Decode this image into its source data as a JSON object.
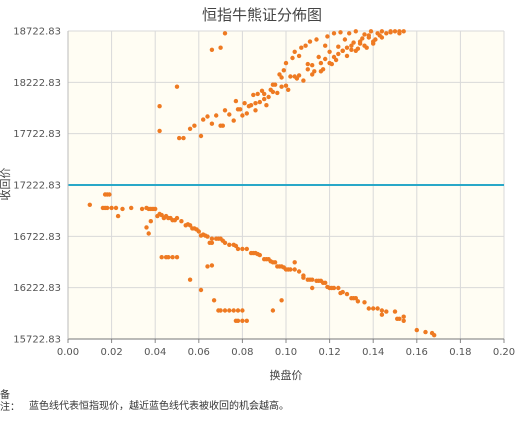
{
  "chart_data": {
    "type": "scatter",
    "title": "恒指牛熊证分佈图",
    "xlabel": "换盘价",
    "ylabel": "收回价",
    "xlim": [
      0.0,
      0.2
    ],
    "ylim": [
      15722.83,
      18722.83
    ],
    "x_ticks": [
      "0.00",
      "0.02",
      "0.04",
      "0.06",
      "0.08",
      "0.10",
      "0.12",
      "0.14",
      "0.16",
      "0.18",
      "0.20"
    ],
    "y_ticks": [
      "15722.83",
      "16222.83",
      "16722.83",
      "17222.83",
      "17722.83",
      "18222.83",
      "18722.83"
    ],
    "grid": true,
    "reference_line": {
      "y": 17222.83,
      "color": "#29a8c8"
    },
    "point_color": "#ee7a22",
    "series": [
      {
        "points": [
          [
            0.05,
            18180
          ],
          [
            0.066,
            18540
          ],
          [
            0.07,
            18560
          ],
          [
            0.072,
            18700
          ],
          [
            0.042,
            17750
          ],
          [
            0.042,
            17990
          ],
          [
            0.051,
            17680
          ],
          [
            0.053,
            17680
          ],
          [
            0.056,
            17770
          ],
          [
            0.058,
            17800
          ],
          [
            0.061,
            17700
          ],
          [
            0.062,
            17860
          ],
          [
            0.064,
            17890
          ],
          [
            0.066,
            17820
          ],
          [
            0.068,
            17900
          ],
          [
            0.07,
            17800
          ],
          [
            0.071,
            17800
          ],
          [
            0.072,
            17950
          ],
          [
            0.074,
            17910
          ],
          [
            0.076,
            17850
          ],
          [
            0.078,
            17960
          ],
          [
            0.08,
            17900
          ],
          [
            0.081,
            18020
          ],
          [
            0.082,
            17920
          ],
          [
            0.084,
            18000
          ],
          [
            0.085,
            18100
          ],
          [
            0.086,
            17950
          ],
          [
            0.088,
            18030
          ],
          [
            0.089,
            18140
          ],
          [
            0.09,
            18060
          ],
          [
            0.091,
            18000
          ],
          [
            0.092,
            18080
          ],
          [
            0.093,
            18150
          ],
          [
            0.094,
            18200
          ],
          [
            0.096,
            18120
          ],
          [
            0.097,
            18300
          ],
          [
            0.098,
            18270
          ],
          [
            0.099,
            18340
          ],
          [
            0.1,
            18410
          ],
          [
            0.101,
            18150
          ],
          [
            0.102,
            18280
          ],
          [
            0.103,
            18460
          ],
          [
            0.104,
            18520
          ],
          [
            0.105,
            18260
          ],
          [
            0.106,
            18480
          ],
          [
            0.107,
            18560
          ],
          [
            0.108,
            18240
          ],
          [
            0.109,
            18580
          ],
          [
            0.11,
            18400
          ],
          [
            0.111,
            18620
          ],
          [
            0.112,
            18300
          ],
          [
            0.113,
            18330
          ],
          [
            0.114,
            18640
          ],
          [
            0.115,
            18470
          ],
          [
            0.116,
            18410
          ],
          [
            0.117,
            18350
          ],
          [
            0.118,
            18580
          ],
          [
            0.119,
            18670
          ],
          [
            0.12,
            18520
          ],
          [
            0.121,
            18400
          ],
          [
            0.122,
            18700
          ],
          [
            0.123,
            18440
          ],
          [
            0.124,
            18570
          ],
          [
            0.125,
            18710
          ],
          [
            0.126,
            18530
          ],
          [
            0.127,
            18640
          ],
          [
            0.128,
            18560
          ],
          [
            0.129,
            18700
          ],
          [
            0.13,
            18540
          ],
          [
            0.131,
            18610
          ],
          [
            0.132,
            18720
          ],
          [
            0.133,
            18550
          ],
          [
            0.134,
            18600
          ],
          [
            0.135,
            18650
          ],
          [
            0.136,
            18690
          ],
          [
            0.137,
            18560
          ],
          [
            0.138,
            18680
          ],
          [
            0.139,
            18720
          ],
          [
            0.14,
            18600
          ],
          [
            0.141,
            18640
          ],
          [
            0.142,
            18700
          ],
          [
            0.143,
            18680
          ],
          [
            0.144,
            18720
          ],
          [
            0.146,
            18700
          ],
          [
            0.148,
            18710
          ],
          [
            0.15,
            18720
          ],
          [
            0.152,
            18700
          ],
          [
            0.154,
            18720
          ],
          [
            0.152,
            18720
          ],
          [
            0.087,
            18110
          ],
          [
            0.083,
            17990
          ],
          [
            0.079,
            17960
          ],
          [
            0.077,
            18040
          ],
          [
            0.086,
            18020
          ],
          [
            0.095,
            18200
          ],
          [
            0.098,
            18180
          ],
          [
            0.104,
            18280
          ],
          [
            0.11,
            18350
          ],
          [
            0.116,
            18330
          ],
          [
            0.12,
            18410
          ],
          [
            0.124,
            18500
          ],
          [
            0.128,
            18480
          ],
          [
            0.132,
            18530
          ],
          [
            0.136,
            18580
          ],
          [
            0.14,
            18620
          ],
          [
            0.144,
            18660
          ],
          [
            0.148,
            18720
          ],
          [
            0.09,
            18110
          ],
          [
            0.094,
            18130
          ],
          [
            0.1,
            18190
          ],
          [
            0.106,
            18290
          ],
          [
            0.112,
            18390
          ],
          [
            0.118,
            18450
          ],
          [
            0.122,
            18470
          ],
          [
            0.126,
            18530
          ],
          [
            0.13,
            18580
          ],
          [
            0.134,
            18620
          ],
          [
            0.138,
            18660
          ],
          [
            0.01,
            17030
          ],
          [
            0.016,
            17000
          ],
          [
            0.017,
            17130
          ],
          [
            0.018,
            17130
          ],
          [
            0.019,
            17130
          ],
          [
            0.017,
            17000
          ],
          [
            0.018,
            17000
          ],
          [
            0.02,
            17000
          ],
          [
            0.022,
            17000
          ],
          [
            0.023,
            16920
          ],
          [
            0.025,
            16990
          ],
          [
            0.029,
            17000
          ],
          [
            0.034,
            16990
          ],
          [
            0.036,
            17000
          ],
          [
            0.037,
            16990
          ],
          [
            0.038,
            16990
          ],
          [
            0.039,
            16990
          ],
          [
            0.04,
            16990
          ],
          [
            0.038,
            16870
          ],
          [
            0.041,
            16920
          ],
          [
            0.042,
            16940
          ],
          [
            0.043,
            16930
          ],
          [
            0.044,
            16900
          ],
          [
            0.045,
            16920
          ],
          [
            0.046,
            16900
          ],
          [
            0.047,
            16900
          ],
          [
            0.048,
            16880
          ],
          [
            0.049,
            16880
          ],
          [
            0.05,
            16900
          ],
          [
            0.052,
            16870
          ],
          [
            0.054,
            16830
          ],
          [
            0.055,
            16840
          ],
          [
            0.056,
            16830
          ],
          [
            0.057,
            16800
          ],
          [
            0.058,
            16800
          ],
          [
            0.059,
            16790
          ],
          [
            0.06,
            16770
          ],
          [
            0.061,
            16730
          ],
          [
            0.062,
            16740
          ],
          [
            0.063,
            16730
          ],
          [
            0.064,
            16720
          ],
          [
            0.066,
            16700
          ],
          [
            0.068,
            16700
          ],
          [
            0.069,
            16700
          ],
          [
            0.07,
            16700
          ],
          [
            0.071,
            16680
          ],
          [
            0.072,
            16660
          ],
          [
            0.074,
            16640
          ],
          [
            0.076,
            16640
          ],
          [
            0.077,
            16630
          ],
          [
            0.078,
            16600
          ],
          [
            0.08,
            16600
          ],
          [
            0.082,
            16600
          ],
          [
            0.084,
            16560
          ],
          [
            0.085,
            16560
          ],
          [
            0.086,
            16560
          ],
          [
            0.087,
            16550
          ],
          [
            0.088,
            16540
          ],
          [
            0.09,
            16500
          ],
          [
            0.091,
            16500
          ],
          [
            0.092,
            16500
          ],
          [
            0.093,
            16480
          ],
          [
            0.094,
            16470
          ],
          [
            0.095,
            16470
          ],
          [
            0.096,
            16430
          ],
          [
            0.097,
            16430
          ],
          [
            0.098,
            16430
          ],
          [
            0.099,
            16420
          ],
          [
            0.1,
            16400
          ],
          [
            0.101,
            16400
          ],
          [
            0.102,
            16400
          ],
          [
            0.104,
            16400
          ],
          [
            0.106,
            16380
          ],
          [
            0.108,
            16340
          ],
          [
            0.11,
            16300
          ],
          [
            0.111,
            16300
          ],
          [
            0.112,
            16300
          ],
          [
            0.114,
            16290
          ],
          [
            0.115,
            16290
          ],
          [
            0.116,
            16290
          ],
          [
            0.117,
            16270
          ],
          [
            0.118,
            16270
          ],
          [
            0.119,
            16230
          ],
          [
            0.12,
            16220
          ],
          [
            0.121,
            16220
          ],
          [
            0.122,
            16220
          ],
          [
            0.124,
            16220
          ],
          [
            0.126,
            16180
          ],
          [
            0.128,
            16160
          ],
          [
            0.13,
            16120
          ],
          [
            0.131,
            16120
          ],
          [
            0.132,
            16120
          ],
          [
            0.138,
            16020
          ],
          [
            0.14,
            16020
          ],
          [
            0.142,
            16020
          ],
          [
            0.144,
            16000
          ],
          [
            0.146,
            15990
          ],
          [
            0.15,
            15990
          ],
          [
            0.151,
            15920
          ],
          [
            0.152,
            15920
          ],
          [
            0.154,
            15900
          ],
          [
            0.16,
            15810
          ],
          [
            0.164,
            15790
          ],
          [
            0.167,
            15780
          ],
          [
            0.168,
            15760
          ],
          [
            0.133,
            16090
          ],
          [
            0.036,
            16810
          ],
          [
            0.037,
            16750
          ],
          [
            0.043,
            16520
          ],
          [
            0.045,
            16520
          ],
          [
            0.046,
            16520
          ],
          [
            0.048,
            16520
          ],
          [
            0.05,
            16520
          ],
          [
            0.056,
            16300
          ],
          [
            0.061,
            16200
          ],
          [
            0.064,
            16430
          ],
          [
            0.065,
            16660
          ],
          [
            0.066,
            16660
          ],
          [
            0.066,
            16440
          ],
          [
            0.067,
            16100
          ],
          [
            0.069,
            16000
          ],
          [
            0.07,
            16000
          ],
          [
            0.072,
            16000
          ],
          [
            0.074,
            16000
          ],
          [
            0.076,
            16000
          ],
          [
            0.078,
            16000
          ],
          [
            0.08,
            16000
          ],
          [
            0.077,
            15900
          ],
          [
            0.078,
            15900
          ],
          [
            0.08,
            15900
          ],
          [
            0.082,
            15900
          ],
          [
            0.094,
            16000
          ],
          [
            0.098,
            16100
          ],
          [
            0.104,
            16470
          ],
          [
            0.108,
            16320
          ],
          [
            0.112,
            16220
          ],
          [
            0.125,
            16170
          ],
          [
            0.136,
            16080
          ],
          [
            0.144,
            15960
          ],
          [
            0.154,
            15940
          ]
        ]
      }
    ]
  },
  "note": {
    "label": "备注：",
    "text": "蓝色线代表恒指现价，越近蓝色线代表被收回的机会越高。"
  }
}
